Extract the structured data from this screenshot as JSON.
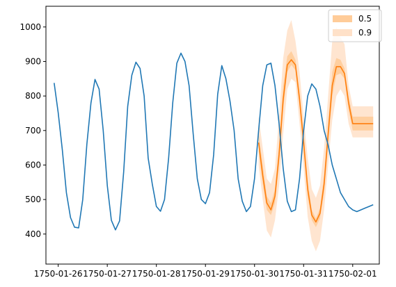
{
  "chart_data": {
    "type": "line",
    "x_axis_type": "date",
    "xlim": [
      "1750-01-25T18:00",
      "1750-02-01T13:00"
    ],
    "ylim": [
      313,
      1060
    ],
    "x_ticks": [
      "1750-01-26",
      "1750-01-27",
      "1750-01-28",
      "1750-01-29",
      "1750-01-30",
      "1750-01-31",
      "1750-02-01"
    ],
    "y_ticks": [
      400,
      500,
      600,
      700,
      800,
      900,
      1000
    ],
    "grid": false,
    "legend_position": "top-right",
    "colors": {
      "observed": "#1f77b4",
      "forecast": "#ff7f0e",
      "band_50": "#ffcc99",
      "band_90": "#ffe1c8"
    },
    "observed": {
      "x": [
        "1750-01-25T22:00",
        "1750-01-26T00:00",
        "1750-01-26T02:00",
        "1750-01-26T04:00",
        "1750-01-26T06:00",
        "1750-01-26T08:00",
        "1750-01-26T10:00",
        "1750-01-26T12:00",
        "1750-01-26T14:00",
        "1750-01-26T16:00",
        "1750-01-26T18:00",
        "1750-01-26T20:00",
        "1750-01-26T22:00",
        "1750-01-27T00:00",
        "1750-01-27T02:00",
        "1750-01-27T04:00",
        "1750-01-27T06:00",
        "1750-01-27T08:00",
        "1750-01-27T10:00",
        "1750-01-27T12:00",
        "1750-01-27T14:00",
        "1750-01-27T16:00",
        "1750-01-27T18:00",
        "1750-01-27T20:00",
        "1750-01-27T22:00",
        "1750-01-28T00:00",
        "1750-01-28T02:00",
        "1750-01-28T04:00",
        "1750-01-28T06:00",
        "1750-01-28T08:00",
        "1750-01-28T10:00",
        "1750-01-28T12:00",
        "1750-01-28T14:00",
        "1750-01-28T16:00",
        "1750-01-28T18:00",
        "1750-01-28T20:00",
        "1750-01-28T22:00",
        "1750-01-29T00:00",
        "1750-01-29T02:00",
        "1750-01-29T04:00",
        "1750-01-29T06:00",
        "1750-01-29T08:00",
        "1750-01-29T10:00",
        "1750-01-29T12:00",
        "1750-01-29T14:00",
        "1750-01-29T16:00",
        "1750-01-29T18:00",
        "1750-01-29T20:00",
        "1750-01-29T22:00",
        "1750-01-30T00:00",
        "1750-01-30T02:00",
        "1750-01-30T04:00",
        "1750-01-30T06:00",
        "1750-01-30T08:00",
        "1750-01-30T10:00",
        "1750-01-30T12:00",
        "1750-01-30T14:00",
        "1750-01-30T16:00",
        "1750-01-30T18:00",
        "1750-01-30T20:00",
        "1750-01-30T22:00",
        "1750-01-31T00:00",
        "1750-01-31T02:00",
        "1750-01-31T04:00",
        "1750-01-31T06:00",
        "1750-01-31T08:00",
        "1750-01-31T10:00",
        "1750-01-31T12:00",
        "1750-01-31T14:00",
        "1750-01-31T16:00",
        "1750-01-31T18:00",
        "1750-01-31T20:00",
        "1750-01-31T22:00",
        "1750-02-01T00:00",
        "1750-02-01T02:00",
        "1750-02-01T04:00",
        "1750-02-01T06:00",
        "1750-02-01T08:00",
        "1750-02-01T10:00"
      ],
      "y": [
        838,
        752,
        645,
        520,
        448,
        420,
        418,
        500,
        660,
        780,
        848,
        820,
        700,
        540,
        440,
        412,
        438,
        580,
        770,
        860,
        898,
        880,
        800,
        620,
        545,
        480,
        466,
        500,
        620,
        780,
        895,
        924,
        900,
        830,
        690,
        560,
        500,
        488,
        520,
        630,
        805,
        888,
        850,
        785,
        700,
        560,
        495,
        465,
        480,
        560,
        700,
        830,
        890,
        895,
        830,
        720,
        590,
        495,
        465,
        470,
        560,
        700,
        800,
        835,
        820,
        770,
        700,
        658,
        600,
        560,
        520,
        500,
        480,
        470,
        465,
        470,
        475,
        480,
        485
      ]
    },
    "series": [
      {
        "name": "0.5",
        "x": [
          "1750-01-30T02:00",
          "1750-01-30T04:00",
          "1750-01-30T06:00",
          "1750-01-30T08:00",
          "1750-01-30T10:00",
          "1750-01-30T12:00",
          "1750-01-30T14:00",
          "1750-01-30T16:00",
          "1750-01-30T18:00",
          "1750-01-30T20:00",
          "1750-01-30T22:00",
          "1750-01-31T00:00",
          "1750-01-31T02:00",
          "1750-01-31T04:00",
          "1750-01-31T06:00",
          "1750-01-31T08:00",
          "1750-01-31T10:00",
          "1750-01-31T12:00",
          "1750-01-31T14:00",
          "1750-01-31T16:00",
          "1750-01-31T18:00",
          "1750-01-31T20:00",
          "1750-01-31T22:00",
          "1750-02-01T00:00",
          "1750-02-01T02:00",
          "1750-02-01T04:00",
          "1750-02-01T06:00",
          "1750-02-01T08:00",
          "1750-02-01T10:00"
        ],
        "low": [
          640,
          545,
          470,
          455,
          490,
          600,
          760,
          870,
          890,
          875,
          770,
          640,
          510,
          440,
          420,
          445,
          520,
          660,
          800,
          860,
          865,
          850,
          760,
          700,
          700,
          700,
          700,
          700,
          700
        ],
        "high": [
          690,
          600,
          510,
          490,
          530,
          660,
          830,
          915,
          930,
          905,
          815,
          690,
          555,
          470,
          445,
          475,
          570,
          720,
          870,
          910,
          905,
          880,
          800,
          740,
          740,
          740,
          740,
          740,
          740
        ]
      },
      {
        "name": "0.9",
        "x": [
          "1750-01-30T02:00",
          "1750-01-30T04:00",
          "1750-01-30T06:00",
          "1750-01-30T08:00",
          "1750-01-30T10:00",
          "1750-01-30T12:00",
          "1750-01-30T14:00",
          "1750-01-30T16:00",
          "1750-01-30T18:00",
          "1750-01-30T20:00",
          "1750-01-30T22:00",
          "1750-01-31T00:00",
          "1750-01-31T02:00",
          "1750-01-31T04:00",
          "1750-01-31T06:00",
          "1750-01-31T08:00",
          "1750-01-31T10:00",
          "1750-01-31T12:00",
          "1750-01-31T14:00",
          "1750-01-31T16:00",
          "1750-01-31T18:00",
          "1750-01-31T20:00",
          "1750-01-31T22:00",
          "1750-02-01T00:00",
          "1750-02-01T02:00",
          "1750-02-01T04:00",
          "1750-02-01T06:00",
          "1750-02-01T08:00",
          "1750-02-01T10:00"
        ],
        "low": [
          600,
          500,
          410,
          390,
          440,
          540,
          690,
          820,
          850,
          840,
          720,
          590,
          450,
          380,
          350,
          380,
          470,
          600,
          730,
          800,
          820,
          800,
          720,
          680,
          680,
          680,
          680,
          680,
          680
        ],
        "high": [
          740,
          650,
          560,
          545,
          590,
          740,
          910,
          990,
          1020,
          960,
          870,
          740,
          620,
          530,
          505,
          540,
          650,
          800,
          960,
          1000,
          970,
          950,
          830,
          770,
          770,
          770,
          770,
          770,
          770
        ]
      }
    ],
    "forecast": {
      "x": [
        "1750-01-30T02:00",
        "1750-01-30T04:00",
        "1750-01-30T06:00",
        "1750-01-30T08:00",
        "1750-01-30T10:00",
        "1750-01-30T12:00",
        "1750-01-30T14:00",
        "1750-01-30T16:00",
        "1750-01-30T18:00",
        "1750-01-30T20:00",
        "1750-01-30T22:00",
        "1750-01-31T00:00",
        "1750-01-31T02:00",
        "1750-01-31T04:00",
        "1750-01-31T06:00",
        "1750-01-31T08:00",
        "1750-01-31T10:00",
        "1750-01-31T12:00",
        "1750-01-31T14:00",
        "1750-01-31T16:00",
        "1750-01-31T18:00",
        "1750-01-31T20:00",
        "1750-01-31T22:00",
        "1750-02-01T00:00",
        "1750-02-01T02:00",
        "1750-02-01T04:00",
        "1750-02-01T06:00",
        "1750-02-01T08:00",
        "1750-02-01T10:00"
      ],
      "y": [
        665,
        570,
        490,
        470,
        510,
        630,
        790,
        890,
        905,
        890,
        790,
        665,
        530,
        455,
        435,
        460,
        545,
        690,
        830,
        885,
        885,
        865,
        780,
        720,
        720,
        720,
        720,
        720,
        720
      ]
    }
  }
}
